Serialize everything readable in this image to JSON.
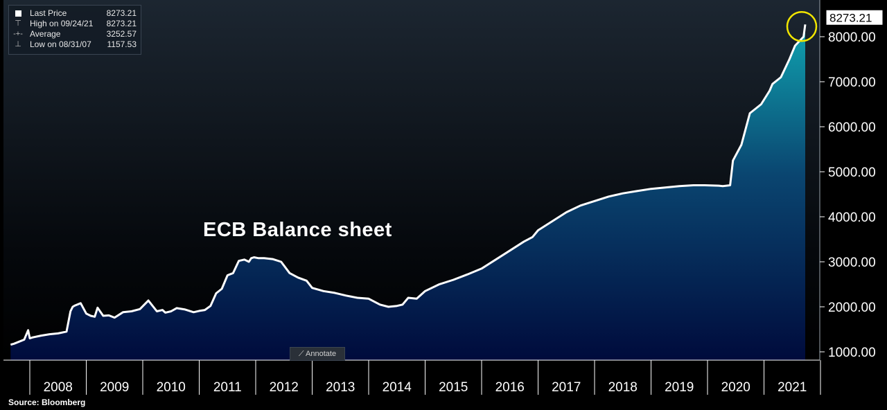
{
  "legend": {
    "rows": [
      {
        "icon": "square",
        "label": "Last Price",
        "value": "8273.21"
      },
      {
        "icon": "high",
        "label": "High on 09/24/21",
        "value": "8273.21"
      },
      {
        "icon": "average",
        "label": "Average",
        "value": "3252.57"
      },
      {
        "icon": "low",
        "label": "Low on 08/31/07",
        "value": "1157.53"
      }
    ]
  },
  "annotate_label": "Annotate",
  "source": "Source: Bloomberg",
  "last_price_tag": "8273.21",
  "colors": {
    "line": "#ffffff",
    "area_top": "#10a3b0",
    "area_bottom": "#000b3c",
    "highlight_circle": "#f2e600",
    "background_top": "#1c2631",
    "background_bottom": "#000000"
  },
  "chart_data": {
    "type": "area",
    "title": "ECB Balance sheet",
    "xlabel": "",
    "ylabel": "",
    "x_tick_labels": [
      "2008",
      "2009",
      "2010",
      "2011",
      "2012",
      "2013",
      "2014",
      "2015",
      "2016",
      "2017",
      "2018",
      "2019",
      "2020",
      "2021"
    ],
    "y_tick_labels": [
      "1000.00",
      "2000.00",
      "3000.00",
      "4000.00",
      "5000.00",
      "6000.00",
      "7000.00",
      "8000.00"
    ],
    "ylim": [
      900,
      8600
    ],
    "xlim": [
      2007.6,
      2021.9
    ],
    "grid": false,
    "legend_position": "top-left",
    "series": [
      {
        "name": "Last Price",
        "x": [
          2007.66,
          2007.72,
          2007.8,
          2007.9,
          2007.97,
          2008.0,
          2008.05,
          2008.2,
          2008.35,
          2008.5,
          2008.65,
          2008.72,
          2008.76,
          2008.8,
          2008.9,
          2009.0,
          2009.08,
          2009.15,
          2009.2,
          2009.3,
          2009.4,
          2009.5,
          2009.65,
          2009.8,
          2009.95,
          2010.1,
          2010.25,
          2010.35,
          2010.4,
          2010.5,
          2010.6,
          2010.75,
          2010.9,
          2011.0,
          2011.1,
          2011.2,
          2011.3,
          2011.4,
          2011.5,
          2011.6,
          2011.7,
          2011.8,
          2011.88,
          2011.92,
          2011.97,
          2012.05,
          2012.15,
          2012.3,
          2012.45,
          2012.6,
          2012.75,
          2012.9,
          2013.0,
          2013.2,
          2013.4,
          2013.6,
          2013.8,
          2014.0,
          2014.2,
          2014.35,
          2014.5,
          2014.6,
          2014.7,
          2014.85,
          2015.0,
          2015.25,
          2015.5,
          2015.75,
          2016.0,
          2016.25,
          2016.5,
          2016.75,
          2016.9,
          2017.0,
          2017.25,
          2017.5,
          2017.75,
          2018.0,
          2018.25,
          2018.5,
          2018.75,
          2019.0,
          2019.25,
          2019.5,
          2019.75,
          2019.95,
          2020.2,
          2020.27,
          2020.4,
          2020.45,
          2020.6,
          2020.75,
          2020.85,
          2020.95,
          2021.1,
          2021.15,
          2021.3,
          2021.45,
          2021.55,
          2021.7,
          2021.73
        ],
        "y": [
          1158,
          1180,
          1220,
          1270,
          1480,
          1300,
          1320,
          1360,
          1390,
          1410,
          1450,
          1900,
          2000,
          2030,
          2080,
          1850,
          1800,
          1780,
          1980,
          1800,
          1810,
          1760,
          1880,
          1900,
          1950,
          2140,
          1900,
          1930,
          1870,
          1900,
          1970,
          1940,
          1880,
          1910,
          1930,
          2020,
          2300,
          2400,
          2700,
          2750,
          3020,
          3050,
          3000,
          3080,
          3100,
          3080,
          3080,
          3060,
          3000,
          2750,
          2650,
          2580,
          2420,
          2350,
          2310,
          2250,
          2200,
          2180,
          2050,
          2000,
          2020,
          2050,
          2200,
          2180,
          2350,
          2500,
          2600,
          2720,
          2850,
          3050,
          3250,
          3450,
          3550,
          3700,
          3900,
          4100,
          4250,
          4350,
          4450,
          4520,
          4570,
          4620,
          4650,
          4680,
          4700,
          4700,
          4690,
          4680,
          4700,
          5250,
          5600,
          6300,
          6400,
          6500,
          6800,
          6950,
          7100,
          7500,
          7800,
          8000,
          8273
        ]
      }
    ],
    "annotations": [
      {
        "label": "8273.21",
        "x": 2021.73,
        "y": 8273
      }
    ]
  }
}
